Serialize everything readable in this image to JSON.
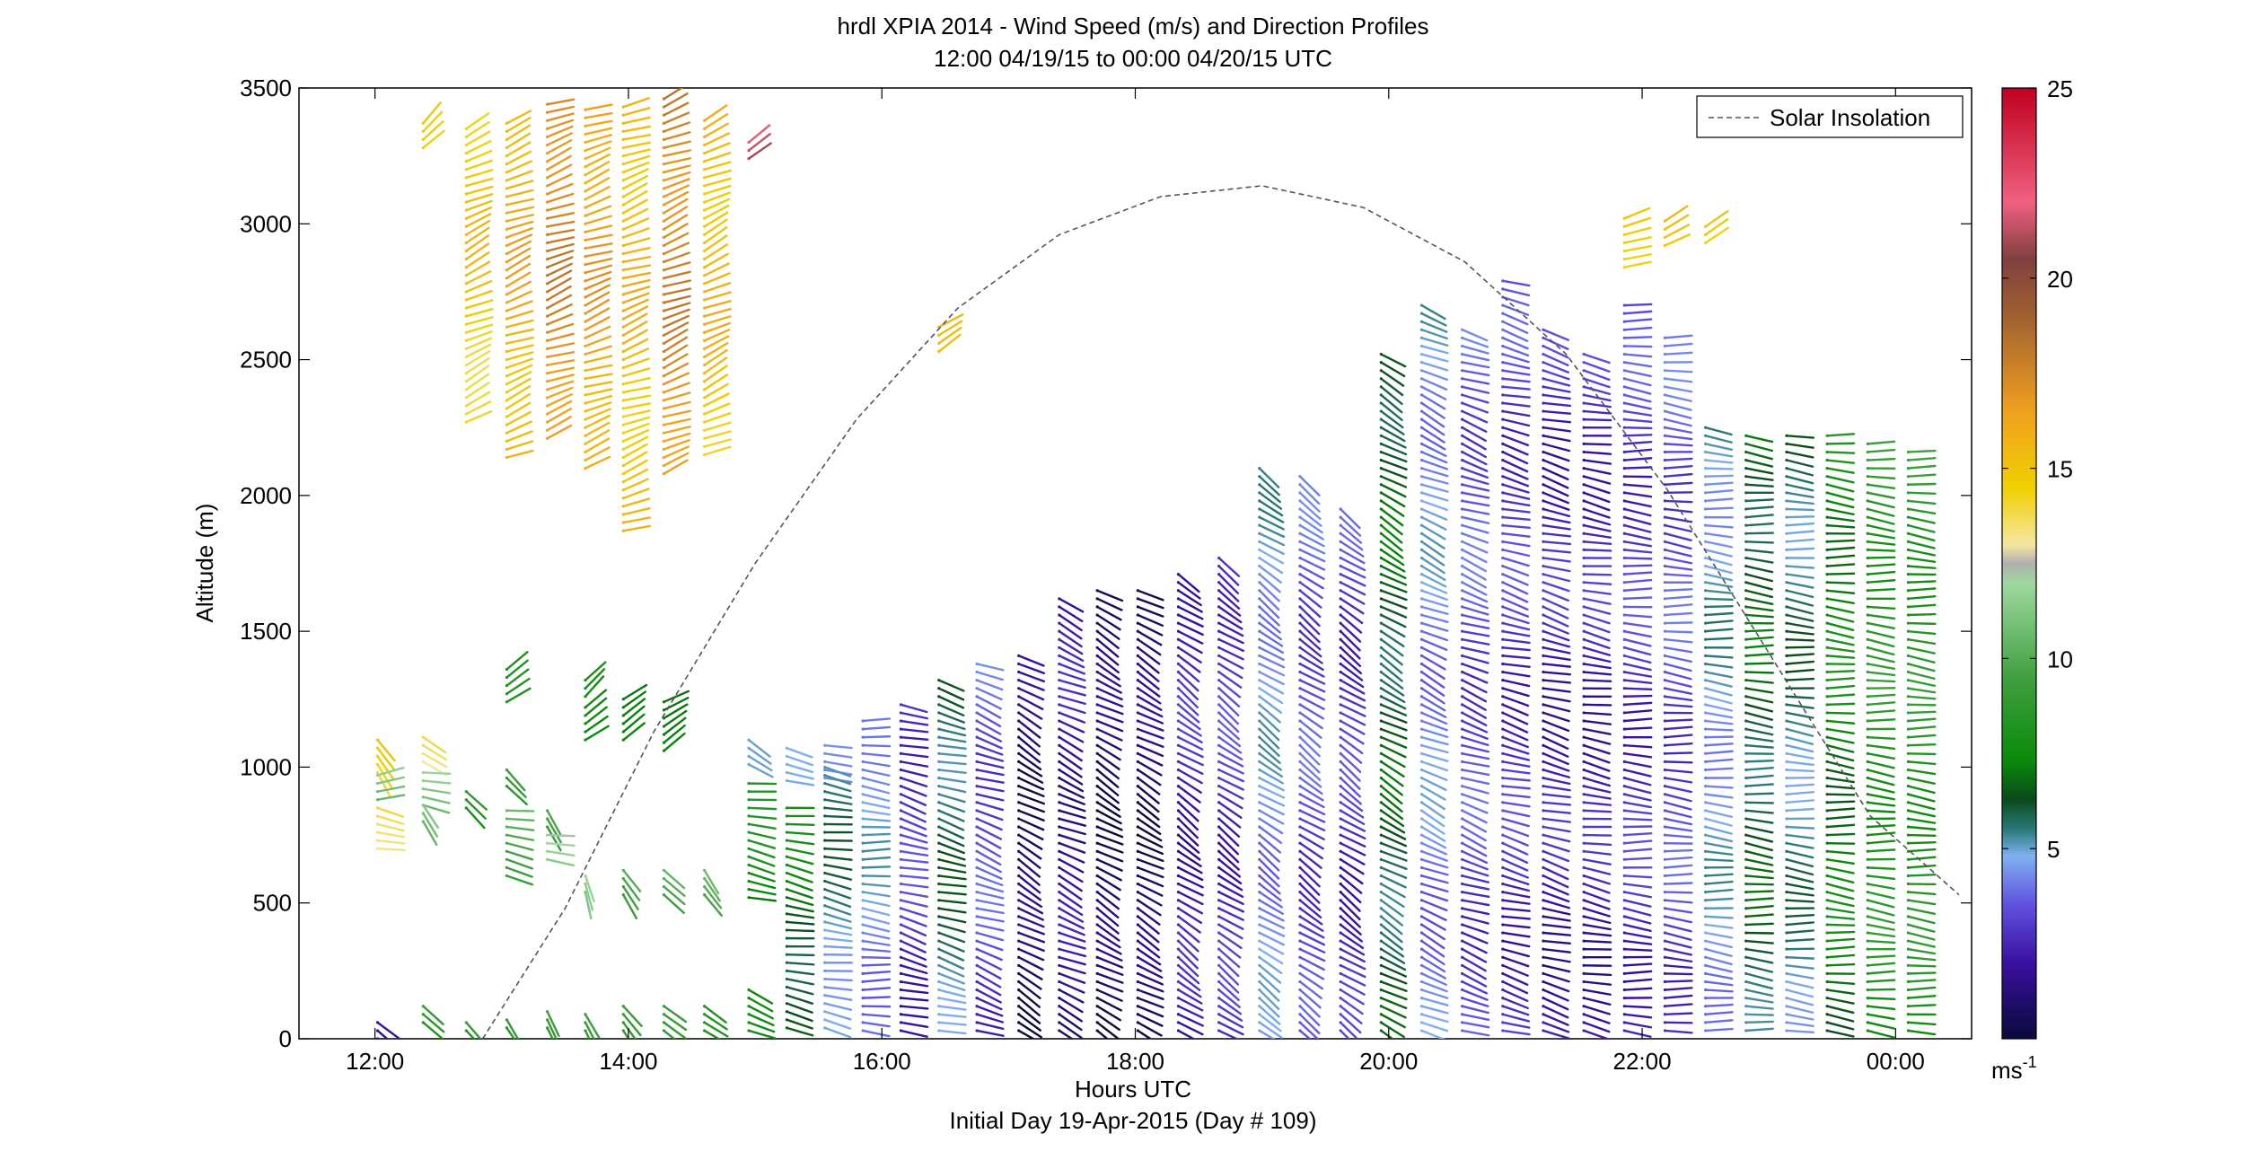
{
  "chart_data": {
    "type": "wind-barb-profile",
    "title": "hrdl XPIA 2014 - Wind Speed (m/s) and Direction Profiles",
    "subtitle": "12:00 04/19/15 to 00:00 04/20/15  UTC",
    "xlabel": "Hours UTC",
    "xlabel2": "Initial Day 19-Apr-2015 (Day # 109)",
    "ylabel": "Altitude (m)",
    "x_range_hours": [
      11.4,
      24.6
    ],
    "ylim": [
      0,
      3500
    ],
    "x_tick_hours": [
      12,
      14,
      16,
      18,
      20,
      22,
      24
    ],
    "x_tick_labels": [
      "12:00",
      "14:00",
      "16:00",
      "18:00",
      "20:00",
      "22:00",
      "00:00"
    ],
    "y_ticks": [
      0,
      500,
      1000,
      1500,
      2000,
      2500,
      3000,
      3500
    ],
    "y_tick_labels": [
      "0",
      "500",
      "1000",
      "1500",
      "2000",
      "2500",
      "3000",
      "3500"
    ],
    "legend": {
      "entry": "Solar Insolation",
      "position": "top-right",
      "line_style": "dashed",
      "color": "#555555"
    },
    "colorbar": {
      "range": [
        0,
        25
      ],
      "ticks": [
        5,
        10,
        15,
        20,
        25
      ],
      "tick_labels": [
        "5",
        "10",
        "15",
        "20",
        "25"
      ],
      "unit": "ms",
      "unit_exp": "-1",
      "stops": [
        {
          "v": 0,
          "c": "#0a0a3c"
        },
        {
          "v": 2,
          "c": "#3a10a0"
        },
        {
          "v": 3.5,
          "c": "#6050e0"
        },
        {
          "v": 4.8,
          "c": "#80b0f0"
        },
        {
          "v": 5.5,
          "c": "#2a7a7a"
        },
        {
          "v": 6.3,
          "c": "#0a4a1a"
        },
        {
          "v": 7.3,
          "c": "#0a8a0a"
        },
        {
          "v": 9.5,
          "c": "#40a040"
        },
        {
          "v": 12,
          "c": "#a0d8a0"
        },
        {
          "v": 12.5,
          "c": "#b0b0b0"
        },
        {
          "v": 13,
          "c": "#f5e6a0"
        },
        {
          "v": 14.5,
          "c": "#f0d000"
        },
        {
          "v": 16.5,
          "c": "#f0a020"
        },
        {
          "v": 19,
          "c": "#a06030"
        },
        {
          "v": 20.5,
          "c": "#804040"
        },
        {
          "v": 22,
          "c": "#f06080"
        },
        {
          "v": 25,
          "c": "#c00020"
        }
      ]
    },
    "solar_insolation": {
      "x_hours": [
        12.85,
        13.5,
        14.2,
        15.0,
        15.8,
        16.6,
        17.4,
        18.2,
        19.0,
        19.8,
        20.6,
        21.4,
        22.2,
        23.0,
        23.8,
        24.5
      ],
      "y_m": [
        0,
        480,
        1130,
        1750,
        2280,
        2690,
        2960,
        3100,
        3140,
        3060,
        2860,
        2520,
        2020,
        1420,
        820,
        530
      ]
    },
    "profiles": [
      {
        "t": 12.02,
        "segs": [
          [
            0,
            60,
            50,
            1.5
          ],
          [
            980,
            1110,
            30,
            14
          ],
          [
            880,
            970,
            110,
            11
          ],
          [
            700,
            870,
            80,
            14
          ]
        ]
      },
      {
        "t": 12.38,
        "segs": [
          [
            3280,
            3390,
            135,
            15
          ],
          [
            1020,
            1110,
            50,
            12.5
          ],
          [
            860,
            990,
            80,
            11
          ],
          [
            800,
            860,
            40,
            11
          ],
          [
            60,
            120,
            40,
            8
          ]
        ]
      },
      {
        "t": 12.72,
        "segs": [
          [
            2270,
            3370,
            115,
            14.5
          ],
          [
            850,
            910,
            40,
            8
          ],
          [
            30,
            70,
            35,
            8
          ]
        ]
      },
      {
        "t": 13.04,
        "segs": [
          [
            2140,
            3370,
            112,
            15.5
          ],
          [
            1240,
            1380,
            120,
            8
          ],
          [
            930,
            990,
            40,
            8
          ],
          [
            600,
            850,
            80,
            10
          ],
          [
            40,
            90,
            35,
            8
          ]
        ]
      },
      {
        "t": 13.36,
        "segs": [
          [
            2210,
            3460,
            110,
            17
          ],
          [
            780,
            850,
            20,
            9
          ],
          [
            660,
            760,
            80,
            12
          ],
          [
            40,
            110,
            35,
            8
          ]
        ]
      },
      {
        "t": 13.66,
        "segs": [
          [
            2100,
            3440,
            110,
            16
          ],
          [
            1260,
            1340,
            130,
            8
          ],
          [
            1100,
            1240,
            120,
            7
          ],
          [
            540,
            620,
            20,
            12
          ],
          [
            30,
            110,
            35,
            8
          ]
        ]
      },
      {
        "t": 13.96,
        "segs": [
          [
            1870,
            3440,
            110,
            15
          ],
          [
            1100,
            1250,
            120,
            7
          ],
          [
            530,
            640,
            30,
            10
          ],
          [
            30,
            140,
            35,
            8
          ]
        ]
      },
      {
        "t": 14.28,
        "segs": [
          [
            2080,
            3460,
            112,
            17
          ],
          [
            1060,
            1250,
            120,
            7
          ],
          [
            530,
            620,
            40,
            10
          ],
          [
            30,
            120,
            45,
            8
          ]
        ]
      },
      {
        "t": 14.6,
        "segs": [
          [
            2150,
            3400,
            115,
            15
          ],
          [
            530,
            620,
            30,
            10
          ],
          [
            30,
            120,
            50,
            7.5
          ]
        ]
      },
      {
        "t": 14.95,
        "segs": [
          [
            3240,
            3300,
            120,
            21
          ],
          [
            1010,
            1120,
            60,
            5
          ],
          [
            520,
            940,
            80,
            7.2
          ],
          [
            30,
            180,
            70,
            7.2
          ]
        ]
      },
      {
        "t": 15.25,
        "segs": [
          [
            950,
            1080,
            80,
            4.8
          ],
          [
            40,
            850,
            80,
            6.5
          ]
        ]
      },
      {
        "t": 15.55,
        "segs": [
          [
            960,
            1080,
            90,
            4.5
          ],
          [
            40,
            1000,
            80,
            5
          ]
        ]
      },
      {
        "t": 15.85,
        "segs": [
          [
            30,
            1180,
            85,
            4.2
          ]
        ]
      },
      {
        "t": 16.15,
        "segs": [
          [
            30,
            1230,
            75,
            2.5
          ]
        ]
      },
      {
        "t": 16.45,
        "segs": [
          [
            30,
            1330,
            75,
            5.5
          ],
          [
            2530,
            2620,
            120,
            15
          ]
        ]
      },
      {
        "t": 16.75,
        "segs": [
          [
            30,
            1380,
            70,
            3
          ]
        ]
      },
      {
        "t": 17.08,
        "segs": [
          [
            30,
            1430,
            60,
            0.6
          ]
        ]
      },
      {
        "t": 17.4,
        "segs": [
          [
            30,
            1640,
            65,
            1.5
          ]
        ]
      },
      {
        "t": 17.7,
        "segs": [
          [
            30,
            1660,
            60,
            0.5
          ]
        ]
      },
      {
        "t": 18.02,
        "segs": [
          [
            30,
            1670,
            60,
            0.6
          ]
        ]
      },
      {
        "t": 18.34,
        "segs": [
          [
            30,
            1720,
            55,
            2
          ]
        ]
      },
      {
        "t": 18.66,
        "segs": [
          [
            30,
            1770,
            55,
            2.5
          ]
        ]
      },
      {
        "t": 18.98,
        "segs": [
          [
            30,
            2100,
            55,
            4.2
          ]
        ]
      },
      {
        "t": 19.3,
        "segs": [
          [
            30,
            2080,
            55,
            3
          ]
        ]
      },
      {
        "t": 19.62,
        "segs": [
          [
            30,
            1960,
            55,
            2.5
          ]
        ]
      },
      {
        "t": 19.94,
        "segs": [
          [
            30,
            2520,
            60,
            6
          ]
        ]
      },
      {
        "t": 20.26,
        "segs": [
          [
            30,
            2720,
            65,
            4
          ]
        ]
      },
      {
        "t": 20.58,
        "segs": [
          [
            30,
            2610,
            70,
            3
          ]
        ]
      },
      {
        "t": 20.9,
        "segs": [
          [
            30,
            2800,
            75,
            2.5
          ]
        ]
      },
      {
        "t": 21.22,
        "segs": [
          [
            30,
            2620,
            75,
            2
          ]
        ]
      },
      {
        "t": 21.54,
        "segs": [
          [
            30,
            2520,
            80,
            2
          ]
        ]
      },
      {
        "t": 21.86,
        "segs": [
          [
            30,
            2720,
            85,
            2.5
          ],
          [
            2840,
            3020,
            110,
            15
          ]
        ]
      },
      {
        "t": 22.18,
        "segs": [
          [
            30,
            2600,
            85,
            3
          ],
          [
            2920,
            3020,
            115,
            15.5
          ]
        ]
      },
      {
        "t": 22.5,
        "segs": [
          [
            30,
            2260,
            85,
            4.5
          ],
          [
            2930,
            3000,
            115,
            15
          ]
        ]
      },
      {
        "t": 22.82,
        "segs": [
          [
            30,
            2240,
            85,
            6
          ]
        ]
      },
      {
        "t": 23.14,
        "segs": [
          [
            30,
            2240,
            85,
            5.2
          ]
        ]
      },
      {
        "t": 23.46,
        "segs": [
          [
            30,
            2230,
            85,
            7
          ]
        ]
      },
      {
        "t": 23.78,
        "segs": [
          [
            30,
            2200,
            85,
            8
          ]
        ]
      },
      {
        "t": 24.1,
        "segs": [
          [
            30,
            2160,
            85,
            8
          ]
        ]
      }
    ]
  }
}
